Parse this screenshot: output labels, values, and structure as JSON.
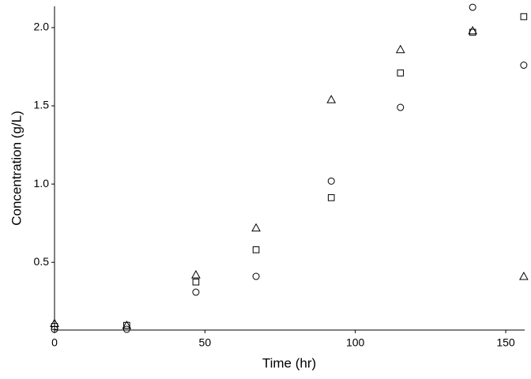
{
  "chart_data": {
    "type": "scatter",
    "x_label": "Time (hr)",
    "y_label": "Concentration (g/L)",
    "xlim": [
      0,
      156.3
    ],
    "ylim": [
      0.067,
      2.136
    ],
    "xticks": [
      0,
      50,
      100,
      150
    ],
    "yticks": [
      0.5,
      {
        "value": 1,
        "label": "1.0"
      },
      1.5,
      {
        "value": 2,
        "label": "2.0"
      }
    ],
    "grid": false,
    "series": [
      {
        "marker": "circle",
        "color": "#000000",
        "x": [
          0,
          24,
          47,
          67,
          92,
          115,
          139,
          156
        ],
        "values": [
          0.072,
          0.072,
          0.309,
          0.41,
          1.019,
          1.49,
          2.13,
          1.76
        ]
      },
      {
        "marker": "square",
        "color": "#000000",
        "x": [
          0,
          24,
          47,
          67,
          92,
          115,
          139,
          156
        ],
        "values": [
          0.09,
          0.097,
          0.374,
          0.58,
          0.913,
          1.71,
          1.97,
          2.07
        ]
      },
      {
        "marker": "triangle",
        "color": "#000000",
        "x": [
          0,
          24,
          47,
          67,
          92,
          115,
          139,
          156
        ],
        "values": [
          0.11,
          0.097,
          0.42,
          0.72,
          1.54,
          1.86,
          1.98,
          0.41
        ]
      }
    ]
  }
}
